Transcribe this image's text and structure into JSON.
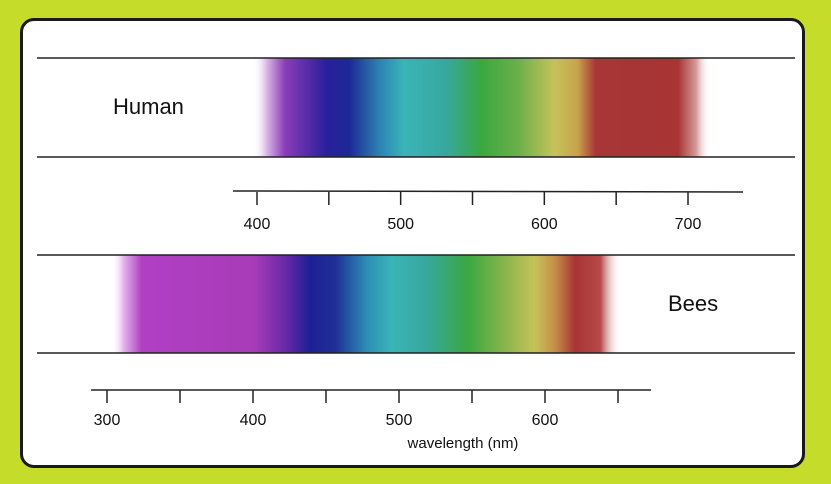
{
  "colors": {
    "background": "#c5dc2b",
    "frame_border": "#1a1a1a",
    "violet": "#6a2aa8",
    "blue": "#1c1f96",
    "cyan": "#39b3b8",
    "green": "#39a83f",
    "yellow": "#c6c25a",
    "red": "#a83434",
    "uv_magenta": "#b13fc4"
  },
  "human": {
    "label": "Human",
    "range_nm": [
      400,
      710
    ],
    "axis_ticks": [
      400,
      450,
      500,
      550,
      600,
      650,
      700
    ],
    "axis_labels": [
      "400",
      "500",
      "600",
      "700"
    ]
  },
  "bees": {
    "label": "Bees",
    "range_nm": [
      300,
      650
    ],
    "axis_ticks": [
      300,
      350,
      400,
      450,
      500,
      550,
      600,
      650
    ],
    "axis_labels": [
      "300",
      "400",
      "500",
      "600"
    ]
  },
  "axis_title": "wavelength (nm)"
}
